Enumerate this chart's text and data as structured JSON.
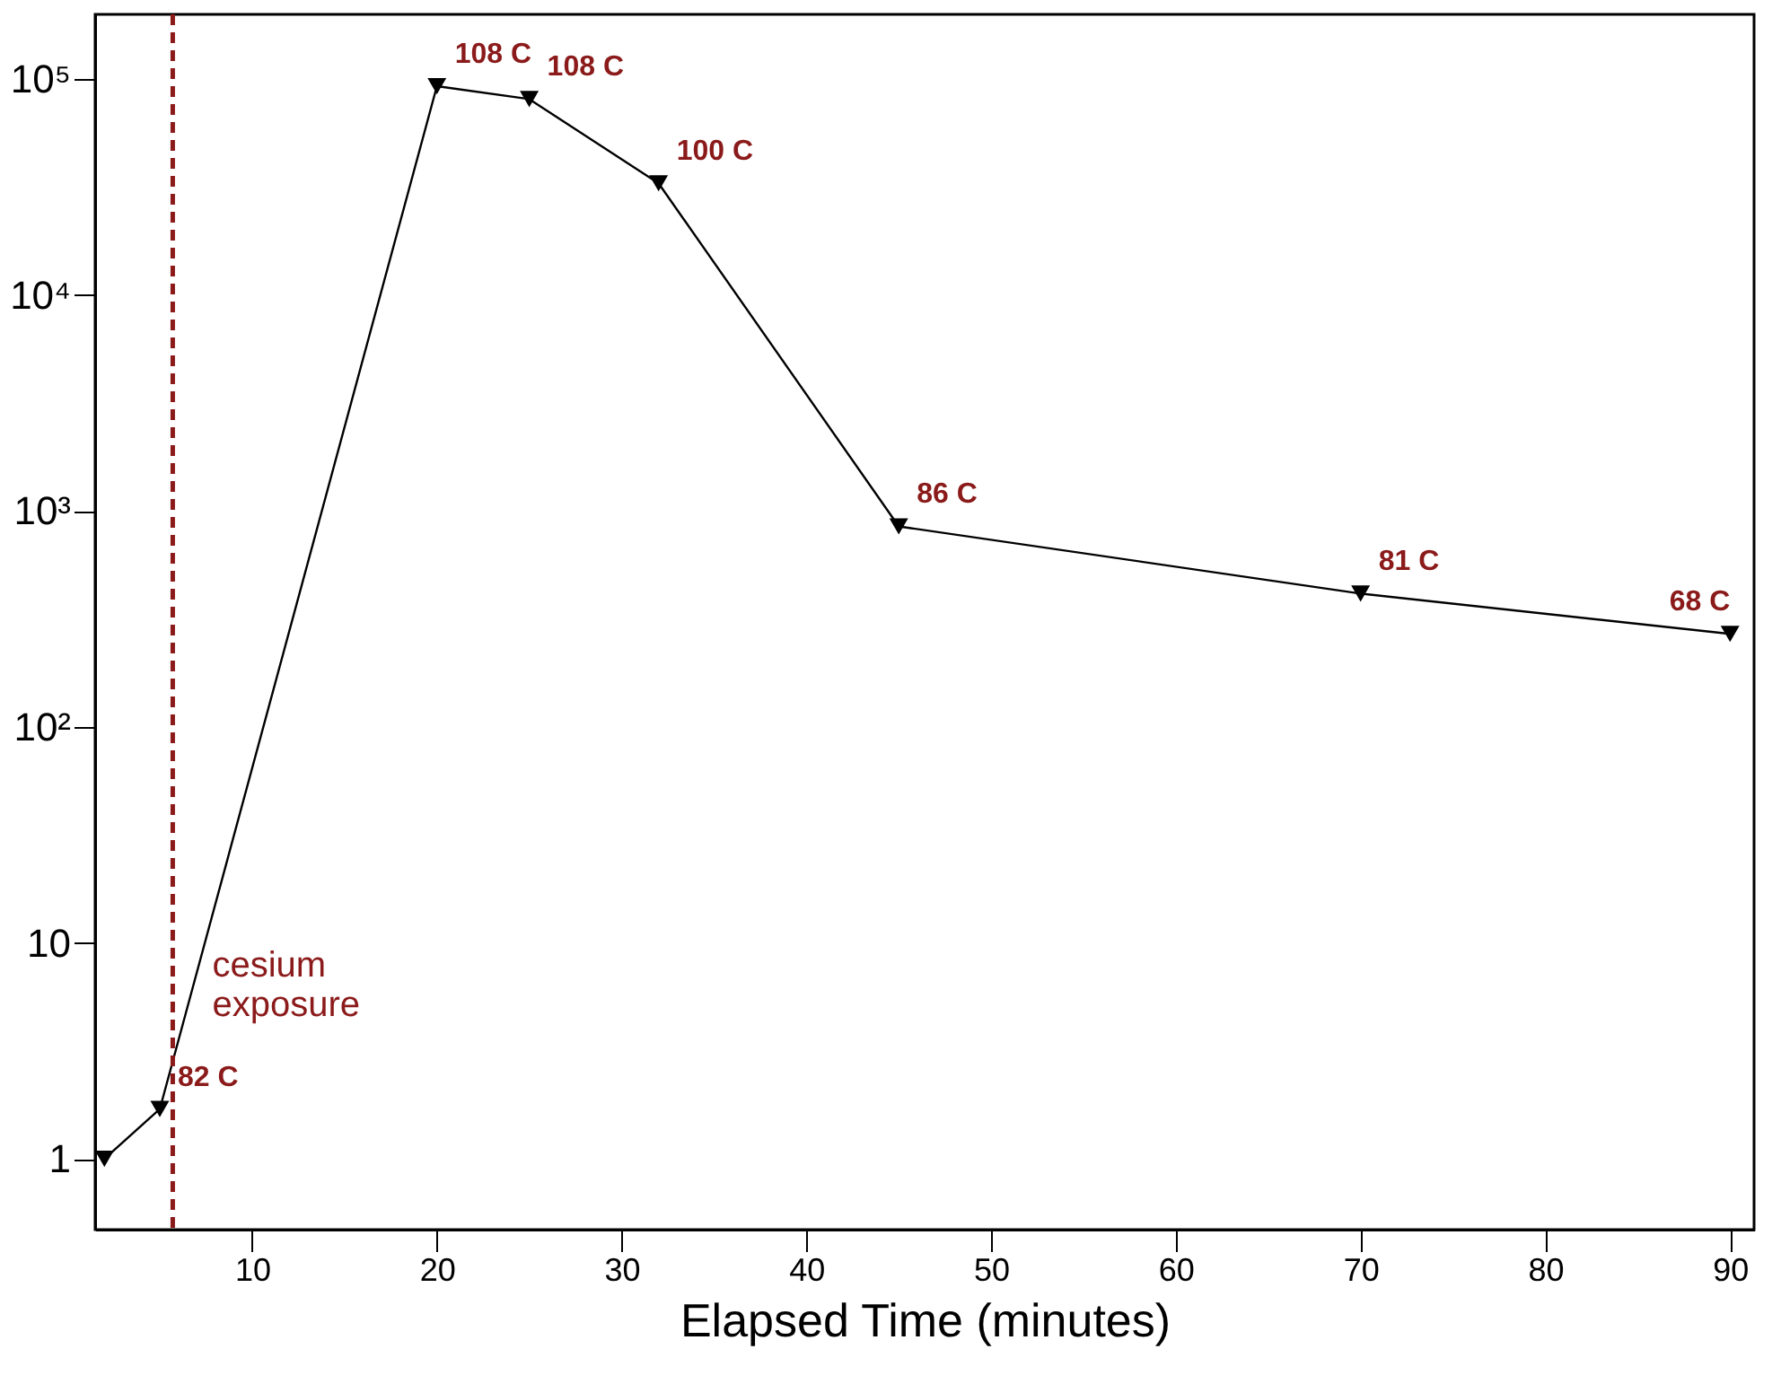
{
  "chart_data": {
    "type": "line",
    "xlabel": "Elapsed Time (minutes)",
    "x": [
      2,
      5,
      20,
      25,
      32,
      45,
      70,
      90
    ],
    "series": [
      {
        "color": "#000000",
        "values": [
          1,
          1.7,
          93000,
          81000,
          33000,
          850,
          415,
          270
        ]
      }
    ],
    "marker": "triangle",
    "line_style": "solid",
    "log": "y",
    "xlim": [
      1.5,
      91.3
    ],
    "xticks": [
      10,
      20,
      30,
      40,
      50,
      60,
      70,
      80,
      90
    ],
    "ylim": [
      0.47,
      200000
    ],
    "yticks": [
      1,
      10,
      {
        "value": 100,
        "label": "10²"
      },
      {
        "value": 1000,
        "label": "10³"
      },
      {
        "value": 10000,
        "label": "10⁴"
      },
      {
        "value": 100000,
        "label": "10⁵"
      }
    ],
    "grid": false,
    "ref_lines": [
      {
        "axis": "x",
        "value": 5.7,
        "label": "cesium exposure",
        "color": "#8b1a1a",
        "line_style": "dashed"
      }
    ],
    "annotations": [
      {
        "text": "82 C",
        "x": 5,
        "y": 1.7
      },
      {
        "text": "108 C",
        "x": 20,
        "y": 93000
      },
      {
        "text": "108 C",
        "x": 25,
        "y": 81000
      },
      {
        "text": "100 C",
        "x": 32,
        "y": 33000
      },
      {
        "text": "86 C",
        "x": 45,
        "y": 850
      },
      {
        "text": "81 C",
        "x": 70,
        "y": 415
      },
      {
        "text": "68 C",
        "x": 90,
        "y": 270
      }
    ]
  }
}
